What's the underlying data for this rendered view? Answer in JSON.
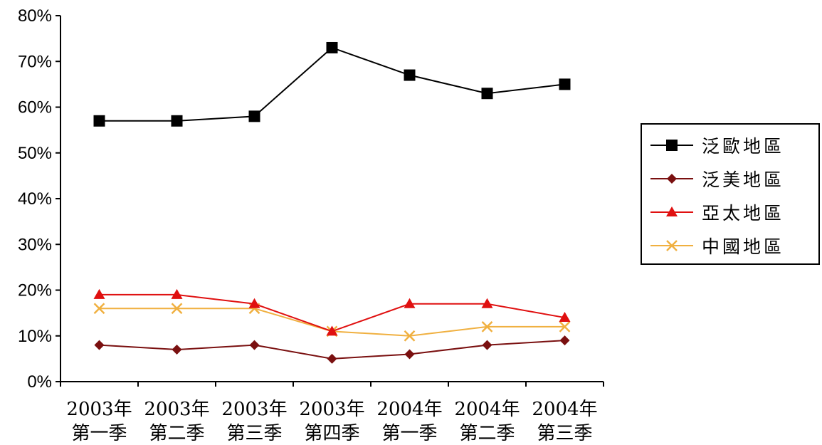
{
  "chart_data": {
    "type": "line",
    "title": "",
    "xlabel": "",
    "ylabel": "",
    "categories": [
      [
        "2003年",
        "第一季"
      ],
      [
        "2003年",
        "第二季"
      ],
      [
        "2003年",
        "第三季"
      ],
      [
        "2003年",
        "第四季"
      ],
      [
        "2004年",
        "第一季"
      ],
      [
        "2004年",
        "第二季"
      ],
      [
        "2004年",
        "第三季"
      ]
    ],
    "y_ticks": [
      "0%",
      "10%",
      "20%",
      "30%",
      "40%",
      "50%",
      "60%",
      "70%",
      "80%"
    ],
    "ylim": [
      0,
      80
    ],
    "y_unit": "%",
    "grid": false,
    "legend_position": "right",
    "series": [
      {
        "name": "泛歐地區",
        "values": [
          57,
          57,
          58,
          73,
          67,
          63,
          65
        ],
        "color": "#000000",
        "marker": "square"
      },
      {
        "name": "泛美地區",
        "values": [
          8,
          7,
          8,
          5,
          6,
          8,
          9
        ],
        "color": "#7a1010",
        "marker": "diamond"
      },
      {
        "name": "亞太地區",
        "values": [
          19,
          19,
          17,
          11,
          17,
          17,
          14
        ],
        "color": "#e01010",
        "marker": "triangle"
      },
      {
        "name": "中國地區",
        "values": [
          16,
          16,
          16,
          11,
          10,
          12,
          12
        ],
        "color": "#f0b040",
        "marker": "x"
      }
    ]
  }
}
